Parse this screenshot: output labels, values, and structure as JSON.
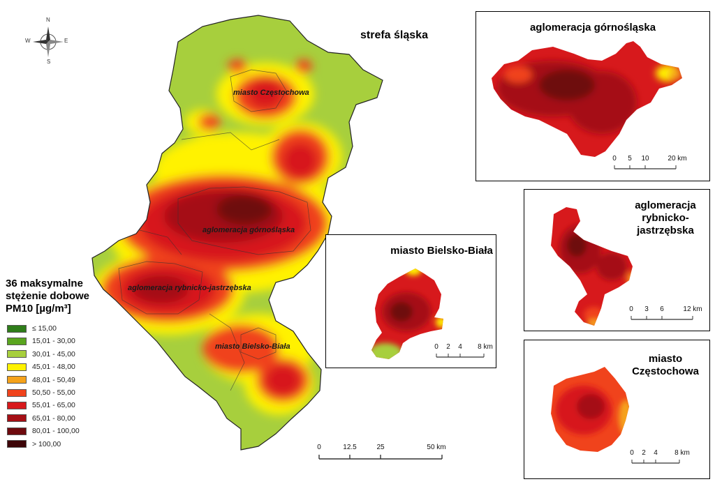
{
  "main_title": "strefa śląska",
  "map_labels": {
    "czestochowa": "miasto Częstochowa",
    "gornoslaska": "aglomeracja górnośląska",
    "rybnicko": "aglomeracja rybnicko-jastrzębska",
    "bielsko": "miasto Bielsko-Biała"
  },
  "compass": {
    "n": "N",
    "s": "S",
    "e": "E",
    "w": "W"
  },
  "legend": {
    "title_lines": [
      "36 maksymalne",
      "stężenie dobowe",
      "PM10 [µg/m³]"
    ],
    "items": [
      {
        "label": "≤ 15,00",
        "color": "#2f7d1a"
      },
      {
        "label": "15,01 - 30,00",
        "color": "#5aa51f"
      },
      {
        "label": "30,01 - 45,00",
        "color": "#a7cf3d"
      },
      {
        "label": "45,01 - 48,00",
        "color": "#fff200"
      },
      {
        "label": "48,01 - 50,49",
        "color": "#f5a21b"
      },
      {
        "label": "50,50 - 55,00",
        "color": "#f0431c"
      },
      {
        "label": "55,01 - 65,00",
        "color": "#d7191c"
      },
      {
        "label": "65,01 - 80,00",
        "color": "#a50f15"
      },
      {
        "label": "80,01 - 100,00",
        "color": "#6e0a0e"
      },
      {
        "label": "> 100,00",
        "color": "#3d0508"
      }
    ]
  },
  "main_scale": {
    "ticks": [
      "0",
      "12.5",
      "25",
      "50 km"
    ]
  },
  "insets": {
    "gornoslaska": {
      "title": "aglomeracja górnośląska",
      "scale_ticks": [
        "0",
        "5",
        "10",
        "20 km"
      ]
    },
    "rybnicko": {
      "title_lines": [
        "aglomeracja",
        "rybnicko-",
        "jastrzębska"
      ],
      "scale_ticks": [
        "0",
        "3",
        "6",
        "12 km"
      ]
    },
    "bielsko": {
      "title": "miasto Bielsko-Biała",
      "scale_ticks": [
        "0",
        "2",
        "4",
        "8 km"
      ]
    },
    "czestochowa": {
      "title_lines": [
        "miasto",
        "Częstochowa"
      ],
      "scale_ticks": [
        "0",
        "2",
        "4",
        "8 km"
      ]
    }
  }
}
